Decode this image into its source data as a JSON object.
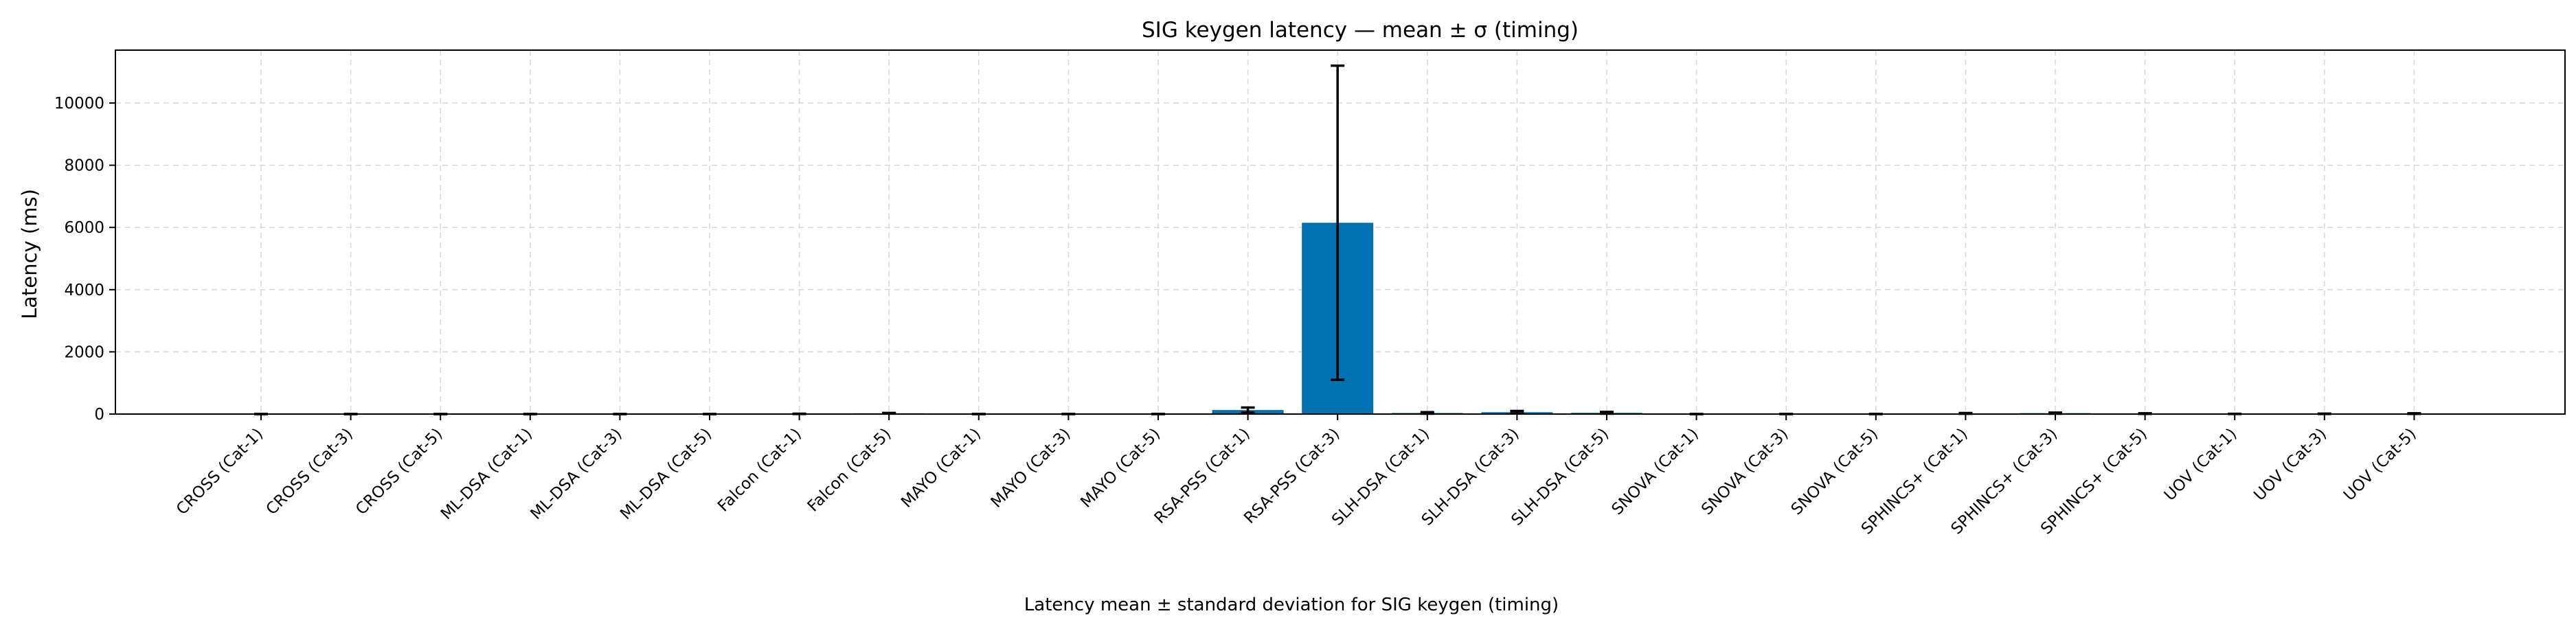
{
  "chart_data": {
    "type": "bar",
    "title": "SIG keygen latency — mean ± σ (timing)",
    "xlabel": "",
    "ylabel": "Latency (ms)",
    "caption": "Latency mean ± standard deviation for SIG keygen (timing)",
    "ylim": [
      0,
      11700
    ],
    "yticks": [
      0,
      2000,
      4000,
      6000,
      8000,
      10000
    ],
    "grid": true,
    "bar_color": "#0072b2",
    "categories": [
      "CROSS (Cat-1)",
      "CROSS (Cat-3)",
      "CROSS (Cat-5)",
      "ML-DSA (Cat-1)",
      "ML-DSA (Cat-3)",
      "ML-DSA (Cat-5)",
      "Falcon (Cat-1)",
      "Falcon (Cat-5)",
      "MAYO (Cat-1)",
      "MAYO (Cat-3)",
      "MAYO (Cat-5)",
      "RSA-PSS (Cat-1)",
      "RSA-PSS (Cat-3)",
      "SLH-DSA (Cat-1)",
      "SLH-DSA (Cat-3)",
      "SLH-DSA (Cat-5)",
      "SNOVA (Cat-1)",
      "SNOVA (Cat-3)",
      "SNOVA (Cat-5)",
      "SPHINCS+ (Cat-1)",
      "SPHINCS+ (Cat-3)",
      "SPHINCS+ (Cat-5)",
      "UOV (Cat-1)",
      "UOV (Cat-3)",
      "UOV (Cat-5)"
    ],
    "series": [
      {
        "values": [
          0.2,
          0.3,
          0.5,
          0.1,
          0.2,
          0.3,
          8,
          25,
          0.5,
          1,
          2,
          130,
          6150,
          35,
          60,
          40,
          0.5,
          1,
          2,
          20,
          30,
          15,
          5,
          8,
          15
        ],
        "errors": [
          0.1,
          0.1,
          0.2,
          0.05,
          0.1,
          0.1,
          4,
          12,
          0.3,
          0.5,
          1,
          80,
          5050,
          25,
          40,
          30,
          0.3,
          0.5,
          1,
          12,
          18,
          10,
          3,
          5,
          10
        ]
      }
    ]
  }
}
